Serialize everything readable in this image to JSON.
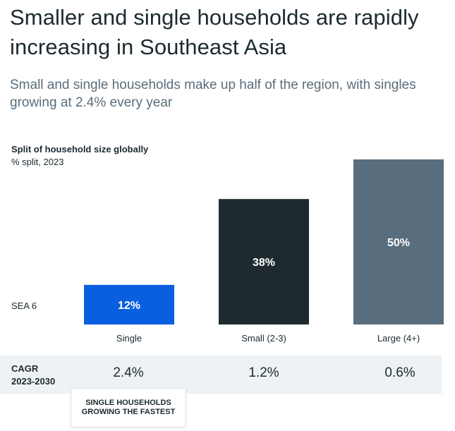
{
  "title": "Smaller and single households are rapidly increasing in Southeast Asia",
  "subtitle": "Small and single households make up half of the region, with singles growing at 2.4% every year",
  "chart_data": {
    "type": "bar",
    "title": "Split of household size globally",
    "unit_label": "% split, 2023",
    "row_label": "SEA 6",
    "categories": [
      "Single",
      "Small (2-3)",
      "Large (4+)"
    ],
    "values": [
      12,
      38,
      50
    ],
    "value_labels": [
      "12%",
      "38%",
      "50%"
    ],
    "colors": [
      "#0a5fe0",
      "#1e2a30",
      "#586d7e"
    ],
    "ylim": [
      0,
      50
    ],
    "grid": false
  },
  "cagr": {
    "label_line1": "CAGR",
    "label_line2": "2023-2030",
    "values": [
      "2.4%",
      "1.2%",
      "0.6%"
    ]
  },
  "callout": {
    "line1": "SINGLE HOUSEHOLDS",
    "line2": "GROWING THE FASTEST"
  }
}
